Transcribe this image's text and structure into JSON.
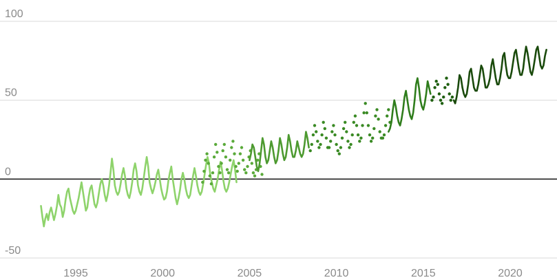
{
  "chart_data": {
    "type": "line",
    "title": "",
    "xlabel": "",
    "ylabel": "",
    "xlim": [
      1992.8,
      2022.8
    ],
    "ylim": [
      -50,
      100
    ],
    "yticks": [
      100,
      50,
      0,
      -50
    ],
    "ytick_labels": [
      "100",
      "50",
      "0",
      "-50"
    ],
    "xticks": [
      1995,
      2000,
      2005,
      2010,
      2015,
      2020
    ],
    "xtick_labels": [
      "1995",
      "2000",
      "2005",
      "2010",
      "2015",
      "2020"
    ],
    "grid": true,
    "zero_line": true,
    "series": [
      {
        "color": "#8ed36b",
        "style": "line",
        "x_start": 1993.0,
        "x_step": 0.08333,
        "values": [
          -17,
          -24,
          -30,
          -25,
          -22,
          -26,
          -21,
          -18,
          -22,
          -26,
          -22,
          -17,
          -10,
          -16,
          -18,
          -24,
          -20,
          -13,
          -8,
          -6,
          -12,
          -16,
          -20,
          -22,
          -20,
          -16,
          -12,
          -7,
          -2,
          -8,
          -14,
          -20,
          -18,
          -11,
          -6,
          -4,
          -10,
          -16,
          -18,
          -15,
          -9,
          -3,
          0,
          -4,
          -10,
          -14,
          -10,
          -4,
          4,
          13,
          6,
          -4,
          -8,
          -10,
          -8,
          -3,
          3,
          7,
          2,
          -6,
          -10,
          -12,
          -8,
          -2,
          6,
          10,
          5,
          -4,
          -8,
          -10,
          -6,
          1,
          8,
          14,
          8,
          -2,
          -6,
          -9,
          -6,
          -2,
          3,
          6,
          0,
          -6,
          -10,
          -13,
          -12,
          -8,
          -1,
          4,
          8,
          0,
          -6,
          -12,
          -16,
          -12,
          -7,
          0,
          4,
          0,
          -6,
          -10,
          -12,
          -10,
          -4,
          2,
          7,
          2,
          -4,
          -8,
          -10,
          -8,
          -3,
          3,
          9,
          14,
          10,
          2,
          -2,
          -6,
          -8,
          -4,
          0,
          6,
          11,
          6,
          -1,
          -6,
          -8,
          -6,
          -2,
          3,
          8,
          12,
          6,
          -2
        ]
      },
      {
        "color": "#5aaa3a",
        "style": "dots",
        "x_start": 2002.3,
        "x_step": 0.08333,
        "values": [
          -2,
          5,
          12,
          16,
          10,
          2,
          -3,
          4,
          14,
          22,
          17,
          8,
          4,
          10,
          18,
          22,
          14,
          6,
          4,
          12,
          20,
          24,
          16,
          8,
          5,
          10,
          16,
          20,
          12,
          6,
          4,
          8,
          14,
          18,
          10,
          4,
          2,
          6,
          12,
          16,
          8,
          3
        ]
      },
      {
        "color": "#4d9a30",
        "style": "line",
        "x_start": 2005.0,
        "x_step": 0.08333,
        "values": [
          12,
          16,
          22,
          20,
          14,
          8,
          5,
          10,
          18,
          26,
          22,
          14,
          10,
          12,
          18,
          24,
          20,
          14,
          10,
          12,
          18,
          26,
          22,
          16,
          12,
          14,
          20,
          28,
          24,
          18,
          14,
          14,
          18,
          24,
          20,
          16,
          14,
          16,
          22,
          30,
          26,
          20
        ]
      },
      {
        "color": "#3a8a24",
        "style": "dots",
        "x_start": 2008.5,
        "x_step": 0.08333,
        "values": [
          18,
          22,
          28,
          34,
          30,
          24,
          20,
          22,
          28,
          36,
          32,
          26,
          20,
          20,
          24,
          30,
          34,
          28,
          22,
          18,
          16,
          20,
          26,
          32,
          36,
          30,
          24,
          20,
          22,
          28,
          36,
          40,
          34,
          28,
          24,
          26,
          34,
          42,
          48,
          42,
          34,
          28,
          24,
          26,
          32,
          40,
          44,
          38,
          30,
          26,
          26,
          28,
          34,
          40,
          44,
          36
        ]
      },
      {
        "color": "#2f7d1c",
        "style": "line",
        "x_start": 2013.0,
        "x_step": 0.08333,
        "values": [
          30,
          32,
          36,
          44,
          50,
          46,
          40,
          36,
          34,
          38,
          44,
          52,
          56,
          50,
          44,
          40,
          38,
          42,
          50,
          60,
          64,
          58,
          50,
          46,
          44,
          48,
          54,
          62,
          58,
          54
        ]
      },
      {
        "color": "#1f5f10",
        "style": "dots",
        "x_start": 2015.5,
        "x_step": 0.08333,
        "values": [
          50,
          52,
          58,
          62,
          60,
          54,
          50,
          48,
          52,
          58,
          64,
          60,
          54,
          50,
          52
        ]
      },
      {
        "color": "#1a4a0c",
        "style": "line",
        "x_start": 2016.75,
        "x_step": 0.08333,
        "values": [
          50,
          48,
          52,
          58,
          66,
          64,
          58,
          54,
          52,
          54,
          60,
          68,
          70,
          64,
          58,
          56,
          56,
          60,
          66,
          72,
          70,
          64,
          58,
          58,
          60,
          64,
          72,
          76,
          70,
          64,
          60,
          60,
          64,
          70,
          78,
          80,
          72,
          66,
          64,
          64,
          68,
          74,
          80,
          82,
          76,
          70,
          66,
          66,
          70,
          78,
          84,
          80,
          74,
          68,
          66,
          70,
          76,
          82,
          84,
          78,
          72,
          70,
          72,
          78,
          82
        ]
      }
    ]
  }
}
